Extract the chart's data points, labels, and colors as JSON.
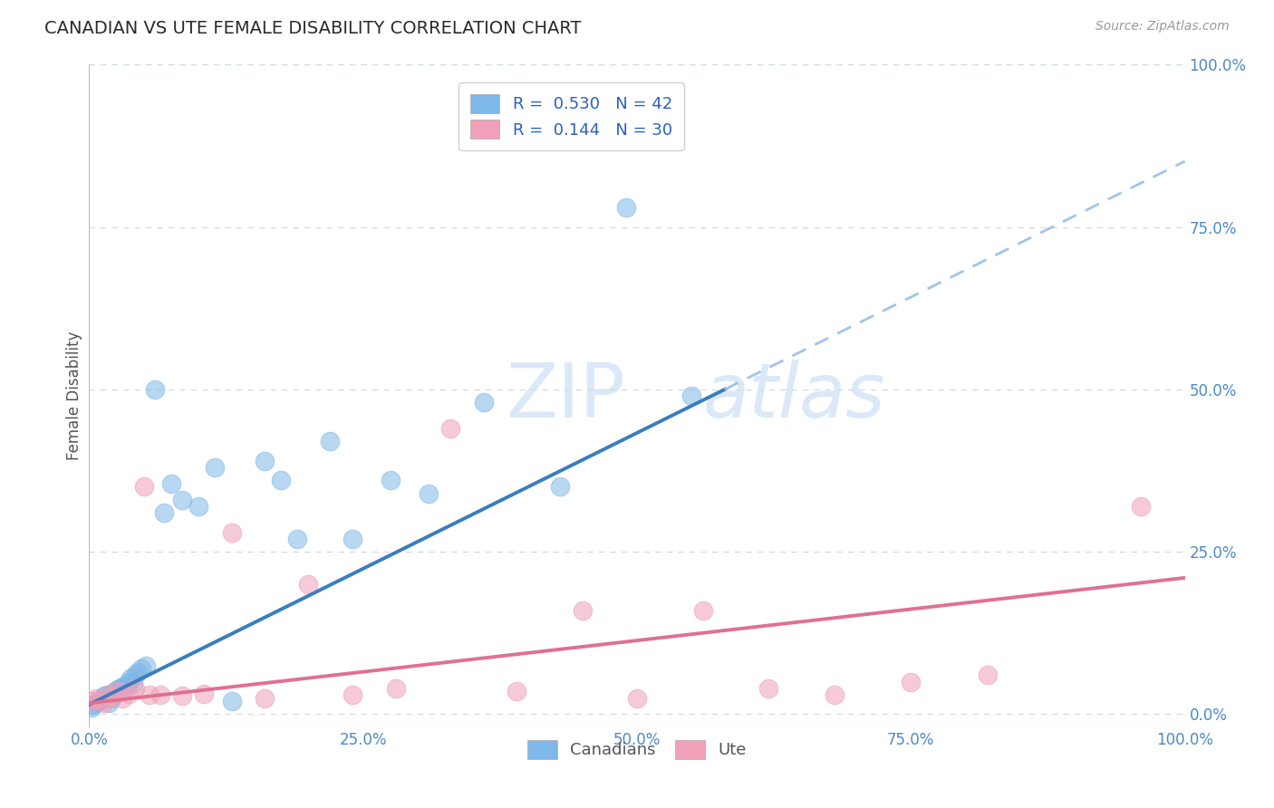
{
  "title": "CANADIAN VS UTE FEMALE DISABILITY CORRELATION CHART",
  "source": "Source: ZipAtlas.com",
  "ylabel": "Female Disability",
  "xlim": [
    0.0,
    1.0
  ],
  "ylim": [
    -0.02,
    1.0
  ],
  "canadian_color": "#7eb8e8",
  "ute_color": "#f0a0b8",
  "canadian_R": 0.53,
  "canadian_N": 42,
  "ute_R": 0.144,
  "ute_N": 30,
  "canadian_line_color": "#3a7dbf",
  "canadian_dash_color": "#a0c4e8",
  "ute_line_color": "#e07090",
  "watermark_color": "#c8ddf5",
  "background_color": "#ffffff",
  "grid_color": "#d0d8e8",
  "canadians_x": [
    0.002,
    0.004,
    0.006,
    0.008,
    0.01,
    0.012,
    0.014,
    0.016,
    0.018,
    0.02,
    0.022,
    0.024,
    0.026,
    0.028,
    0.03,
    0.032,
    0.034,
    0.036,
    0.038,
    0.04,
    0.042,
    0.044,
    0.048,
    0.052,
    0.06,
    0.068,
    0.075,
    0.085,
    0.1,
    0.115,
    0.13,
    0.16,
    0.175,
    0.19,
    0.22,
    0.24,
    0.275,
    0.31,
    0.36,
    0.43,
    0.49,
    0.55
  ],
  "canadians_y": [
    0.01,
    0.015,
    0.018,
    0.02,
    0.022,
    0.025,
    0.028,
    0.03,
    0.018,
    0.025,
    0.03,
    0.035,
    0.038,
    0.04,
    0.042,
    0.04,
    0.045,
    0.05,
    0.055,
    0.048,
    0.06,
    0.065,
    0.07,
    0.075,
    0.5,
    0.31,
    0.355,
    0.33,
    0.32,
    0.38,
    0.02,
    0.39,
    0.36,
    0.27,
    0.42,
    0.27,
    0.36,
    0.34,
    0.48,
    0.35,
    0.78,
    0.49
  ],
  "ute_x": [
    0.003,
    0.006,
    0.01,
    0.014,
    0.018,
    0.022,
    0.026,
    0.03,
    0.036,
    0.042,
    0.05,
    0.055,
    0.065,
    0.085,
    0.105,
    0.13,
    0.16,
    0.2,
    0.24,
    0.28,
    0.33,
    0.39,
    0.45,
    0.5,
    0.56,
    0.62,
    0.68,
    0.75,
    0.82,
    0.96
  ],
  "ute_y": [
    0.02,
    0.025,
    0.022,
    0.018,
    0.03,
    0.028,
    0.035,
    0.025,
    0.032,
    0.04,
    0.35,
    0.03,
    0.03,
    0.028,
    0.032,
    0.28,
    0.025,
    0.2,
    0.03,
    0.04,
    0.44,
    0.035,
    0.16,
    0.025,
    0.16,
    0.04,
    0.03,
    0.05,
    0.06,
    0.32
  ],
  "can_line_x0": 0.0,
  "can_line_y0": 0.015,
  "can_line_x1": 0.58,
  "can_line_y1": 0.5,
  "can_line_solid_end": 0.58,
  "ute_line_x0": 0.0,
  "ute_line_y0": 0.017,
  "ute_line_x1": 1.0,
  "ute_line_y1": 0.21
}
